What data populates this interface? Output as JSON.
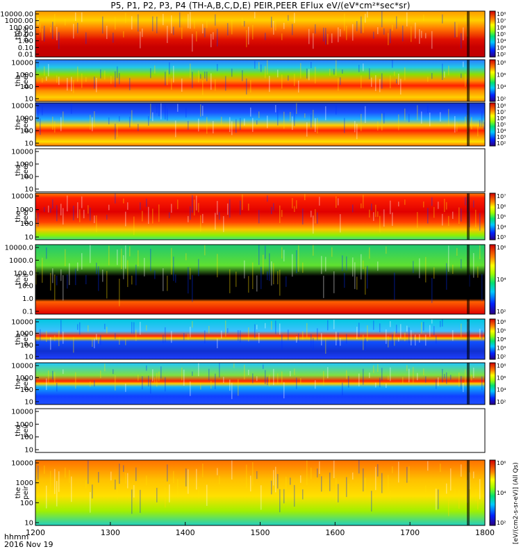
{
  "title": "P5, P1, P2, P3, P4 (TH-A,B,C,D,E) PEIR,PEER EFlux eV/(eV*cm²*sec*sr)",
  "footer": {
    "hhmm": "hhmm",
    "date": "2016 Nov 19"
  },
  "colorbar_unit": "[eV/(cm2-s-sr-eV)] (All Qs)",
  "chart_data": {
    "type": "heatmap",
    "x_ticks": [
      "1200",
      "1300",
      "1400",
      "1500",
      "1600",
      "1700",
      "1800"
    ],
    "x_range": [
      1200,
      1800
    ],
    "panels": [
      {
        "id": "tha-peer",
        "label1": "tha",
        "label2": "peer",
        "y_ticks": [
          "10000.00",
          "1000.00",
          "100.00",
          "10.00",
          "1.00",
          "0.10",
          "0.01"
        ],
        "cb_ticks": [
          "10⁸",
          "10⁷",
          "10⁶",
          "10⁵",
          "10⁴",
          "10³",
          "10²"
        ],
        "has_data": true
      },
      {
        "id": "thb-peer",
        "label1": "thb",
        "label2": "peer",
        "y_ticks": [
          "10000",
          "1000",
          "100",
          "10"
        ],
        "cb_ticks": [
          "10⁸",
          "10⁶",
          "10⁴",
          "10²"
        ],
        "has_data": true
      },
      {
        "id": "thc-peer",
        "label1": "thc",
        "label2": "peer",
        "y_ticks": [
          "10000",
          "1000",
          "100",
          "10"
        ],
        "cb_ticks": [
          "10⁸",
          "10⁷",
          "10⁶",
          "10⁵",
          "10⁴",
          "10³",
          "10²"
        ],
        "has_data": true
      },
      {
        "id": "thd-peer",
        "label1": "thd",
        "label2": "peer",
        "y_ticks": [
          "10000",
          "1000",
          "100",
          "10"
        ],
        "cb_ticks": [],
        "has_data": false
      },
      {
        "id": "the-peer",
        "label1": "the",
        "label2": "peer",
        "y_ticks": [
          "10000",
          "1000",
          "100",
          "10"
        ],
        "cb_ticks": [
          "10⁷",
          "10⁶",
          "10⁵",
          "10⁴",
          "10³"
        ],
        "has_data": true
      },
      {
        "id": "tha-peir",
        "label1": "tha",
        "label2": "peir",
        "y_ticks": [
          "10000.0",
          "1000.0",
          "100.0",
          "10.0",
          "1.0",
          "0.1"
        ],
        "cb_ticks": [
          "10⁶",
          "10⁴",
          "10²"
        ],
        "has_data": true
      },
      {
        "id": "thb-peir",
        "label1": "thb",
        "label2": "peir",
        "y_ticks": [
          "10000",
          "1000",
          "100",
          "10"
        ],
        "cb_ticks": [
          "10⁸",
          "10⁵",
          "10⁴",
          "10³",
          "10²"
        ],
        "has_data": true
      },
      {
        "id": "thc-peir",
        "label1": "thc",
        "label2": "peir",
        "y_ticks": [
          "10000",
          "1000",
          "100",
          "10"
        ],
        "cb_ticks": [
          "10⁸",
          "10⁶",
          "10⁴",
          "10²"
        ],
        "has_data": true
      },
      {
        "id": "thd-peir",
        "label1": "thd",
        "label2": "peir",
        "y_ticks": [
          "10000",
          "1000",
          "100",
          "10"
        ],
        "cb_ticks": [],
        "has_data": false
      },
      {
        "id": "the-peir",
        "label1": "the",
        "label2": "peir",
        "y_ticks": [
          "10000",
          "1000",
          "100",
          "10"
        ],
        "cb_ticks": [
          "10⁶",
          "10⁴",
          "10²"
        ],
        "has_data": true
      }
    ]
  }
}
